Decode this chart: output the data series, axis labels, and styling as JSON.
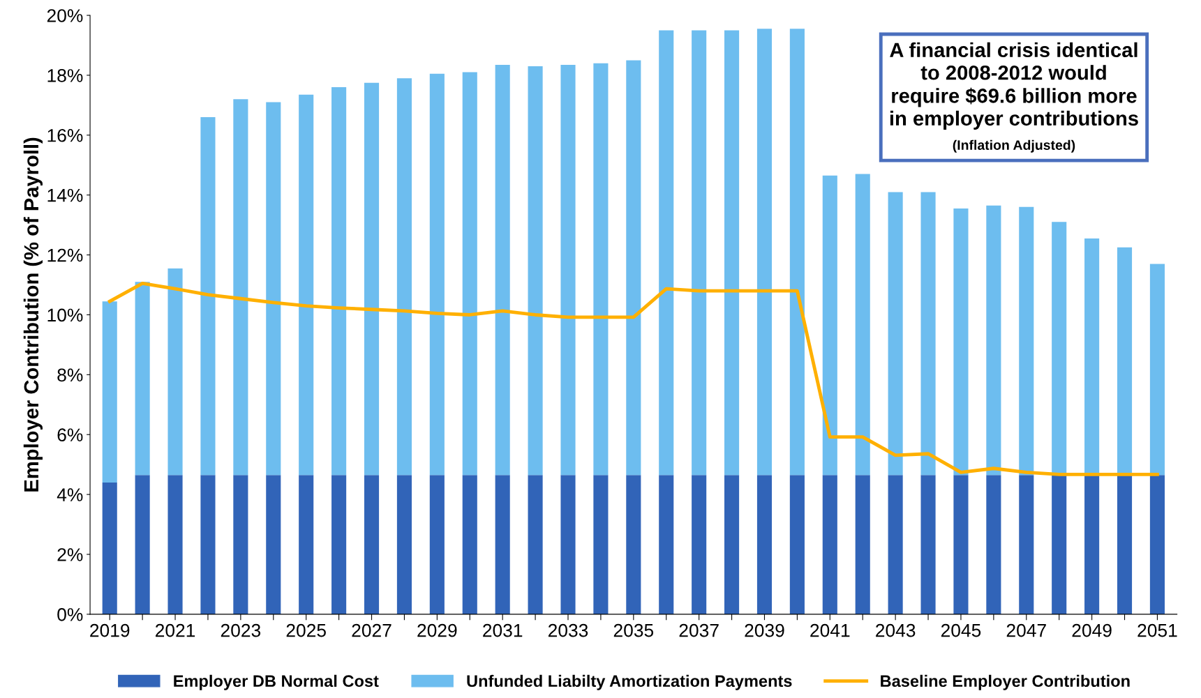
{
  "chart_data": {
    "type": "bar",
    "stacked": true,
    "ylabel": "Employer Contribution (% of Payroll)",
    "categories": [
      "2019",
      null,
      "2021",
      null,
      "2023",
      null,
      "2025",
      null,
      "2027",
      null,
      "2029",
      null,
      "2031",
      null,
      "2033",
      null,
      "2035",
      null,
      "2037",
      null,
      "2039",
      null,
      "2041",
      null,
      "2043",
      null,
      "2045",
      null,
      "2047",
      null,
      "2049",
      null,
      "2051"
    ],
    "series": [
      {
        "name": "Employer DB Normal Cost",
        "color": "#3164b8",
        "values": [
          4.4,
          4.65,
          4.65,
          4.65,
          4.65,
          4.65,
          4.65,
          4.65,
          4.65,
          4.65,
          4.65,
          4.65,
          4.65,
          4.65,
          4.65,
          4.65,
          4.65,
          4.65,
          4.65,
          4.65,
          4.65,
          4.65,
          4.65,
          4.65,
          4.65,
          4.65,
          4.65,
          4.65,
          4.65,
          4.65,
          4.65,
          4.65,
          4.65
        ]
      },
      {
        "name": "Unfunded Liabilty Amortization Payments",
        "color": "#6dbdef",
        "values": [
          6.05,
          6.45,
          6.9,
          11.95,
          12.55,
          12.45,
          12.7,
          12.95,
          13.1,
          13.25,
          13.4,
          13.45,
          13.7,
          13.65,
          13.7,
          13.75,
          13.85,
          14.85,
          14.85,
          14.85,
          14.9,
          14.9,
          10.0,
          10.05,
          9.45,
          9.45,
          8.9,
          9.0,
          8.95,
          8.45,
          7.9,
          7.6,
          7.05
        ]
      },
      {
        "name": "Baseline Employer Contribution",
        "type": "line",
        "color": "#ffb000",
        "values": [
          10.45,
          11.05,
          10.87,
          10.67,
          10.54,
          10.41,
          10.3,
          10.23,
          10.18,
          10.13,
          10.05,
          10.0,
          10.13,
          10.0,
          9.92,
          9.92,
          9.92,
          10.87,
          10.8,
          10.8,
          10.8,
          10.8,
          5.92,
          5.92,
          5.31,
          5.36,
          4.74,
          4.87,
          4.74,
          4.67,
          4.67,
          4.67,
          4.67
        ]
      }
    ],
    "ylim": [
      0,
      20
    ],
    "yticks": [
      {
        "value": 0,
        "label": "0%"
      },
      {
        "value": 2,
        "label": "2%"
      },
      {
        "value": 4,
        "label": "4%"
      },
      {
        "value": 6,
        "label": "6%"
      },
      {
        "value": 8,
        "label": "8%"
      },
      {
        "value": 10,
        "label": "10%"
      },
      {
        "value": 12,
        "label": "12%"
      },
      {
        "value": 14,
        "label": "14%"
      },
      {
        "value": 16,
        "label": "16%"
      },
      {
        "value": 18,
        "label": "18%"
      },
      {
        "value": 20,
        "label": "20%"
      }
    ],
    "annotations": [
      "A financial crisis identical\nto 2008-2012 would\nrequire $69.6 billion more\nin employer contributions",
      "(Inflation Adjusted)"
    ],
    "grid": false,
    "legend": "bottom"
  }
}
